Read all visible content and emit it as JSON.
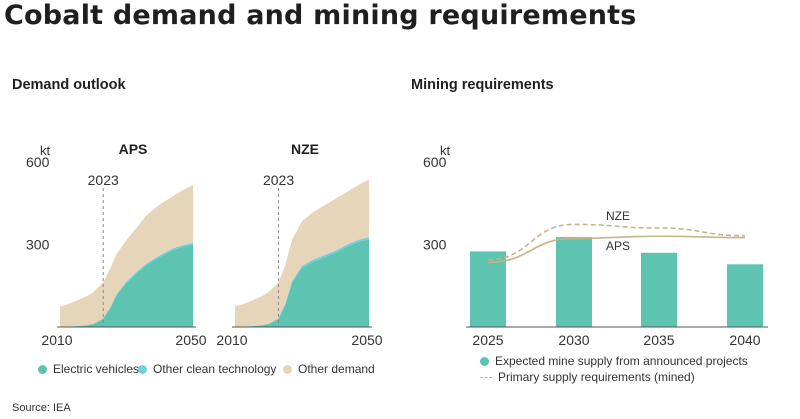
{
  "title": "Cobalt demand and mining requirements",
  "source": "Source: IEA",
  "colors": {
    "electric_vehicles": "#5cc4b1",
    "other_clean": "#72cfdf",
    "other_demand": "#e6d5b8",
    "primary_supply_line": "#c8b388",
    "axis_text": "#333333"
  },
  "chart_data": [
    {
      "type": "area",
      "panel_title": "Demand outlook",
      "scenario": "APS",
      "unit": "kt",
      "x_ticks": [
        "2010",
        "2050"
      ],
      "y_ticks": [
        "300",
        "600"
      ],
      "ylim": [
        0,
        600
      ],
      "xlim": [
        2010,
        2050
      ],
      "marker": "2023",
      "x": [
        2010,
        2012,
        2015,
        2018,
        2020,
        2022,
        2023,
        2025,
        2027,
        2030,
        2033,
        2036,
        2040,
        2044,
        2047,
        2050
      ],
      "series": [
        {
          "name": "Electric vehicles",
          "values": [
            0,
            1,
            3,
            6,
            10,
            22,
            30,
            65,
            115,
            160,
            195,
            225,
            255,
            280,
            292,
            300
          ]
        },
        {
          "name": "Other clean technology",
          "values": [
            0,
            0,
            1,
            1,
            2,
            3,
            3,
            4,
            5,
            6,
            6,
            6,
            6,
            6,
            6,
            6
          ]
        },
        {
          "name": "Other demand",
          "values": [
            75,
            80,
            92,
            105,
            115,
            125,
            130,
            140,
            145,
            150,
            160,
            175,
            185,
            190,
            200,
            212
          ]
        }
      ]
    },
    {
      "type": "area",
      "scenario": "NZE",
      "unit": "",
      "x_ticks": [
        "2010",
        "2050"
      ],
      "ylim": [
        0,
        600
      ],
      "xlim": [
        2010,
        2050
      ],
      "marker": "2023",
      "x": [
        2010,
        2012,
        2015,
        2018,
        2020,
        2022,
        2023,
        2025,
        2027,
        2030,
        2033,
        2036,
        2040,
        2044,
        2047,
        2050
      ],
      "series": [
        {
          "name": "Electric vehicles",
          "values": [
            0,
            1,
            3,
            6,
            10,
            22,
            30,
            80,
            160,
            215,
            235,
            250,
            270,
            295,
            310,
            318
          ]
        },
        {
          "name": "Other clean technology",
          "values": [
            0,
            0,
            1,
            1,
            2,
            3,
            3,
            5,
            6,
            8,
            8,
            8,
            8,
            8,
            8,
            8
          ]
        },
        {
          "name": "Other demand",
          "values": [
            75,
            80,
            92,
            105,
            115,
            125,
            130,
            140,
            150,
            162,
            172,
            180,
            188,
            192,
            200,
            210
          ]
        }
      ]
    },
    {
      "type": "bar",
      "panel_title": "Mining requirements",
      "unit": "kt",
      "y_ticks": [
        "300",
        "600"
      ],
      "ylim": [
        0,
        600
      ],
      "categories": [
        "2025",
        "2030",
        "2035",
        "2040"
      ],
      "series": [
        {
          "name": "Expected mine supply from announced projects",
          "values": [
            275,
            327,
            270,
            228
          ]
        }
      ],
      "lines": [
        {
          "name": "Primary supply requirements (mined)",
          "label": "NZE",
          "style": "dashed",
          "x": [
            2025,
            2030,
            2035,
            2040
          ],
          "values": [
            245,
            373,
            360,
            332
          ]
        },
        {
          "name": "Primary supply requirements (mined)",
          "label": "APS",
          "style": "solid",
          "x": [
            2025,
            2030,
            2035,
            2040
          ],
          "values": [
            235,
            322,
            330,
            325
          ]
        }
      ]
    }
  ],
  "legend_left": [
    {
      "label": "Electric vehicles"
    },
    {
      "label": "Other clean technology"
    },
    {
      "label": "Other demand"
    }
  ],
  "legend_right": [
    {
      "label": "Expected mine supply from announced projects"
    },
    {
      "label": "Primary supply requirements (mined)"
    }
  ]
}
